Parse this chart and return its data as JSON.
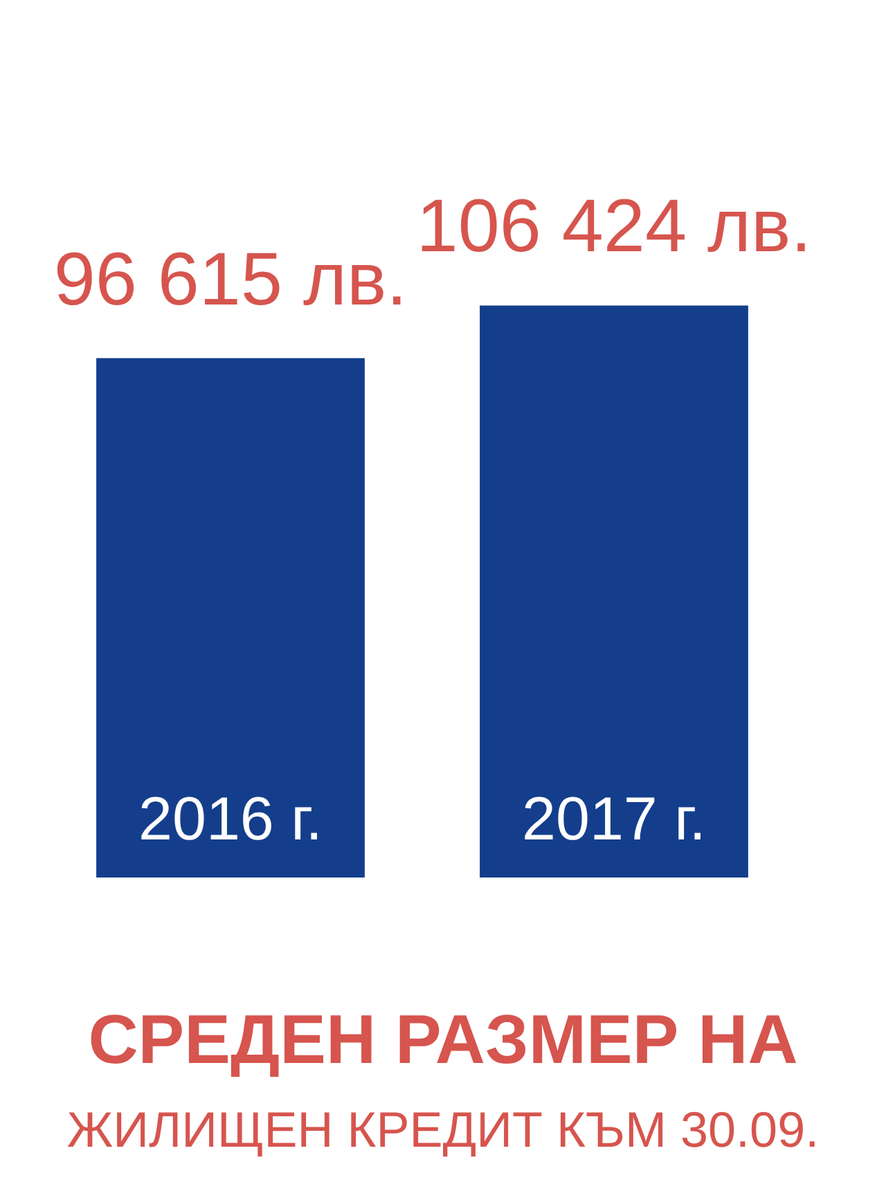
{
  "chart_data": {
    "type": "bar",
    "title": "СРЕДЕН РАЗМЕР НА",
    "subtitle": "ЖИЛИЩЕН КРЕДИТ КЪМ 30.09.",
    "categories": [
      "2016 г.",
      "2017 г."
    ],
    "values": [
      96615,
      106424
    ],
    "value_labels": [
      "96 615 лв.",
      "106 424 лв."
    ],
    "color": "#143e8c"
  }
}
